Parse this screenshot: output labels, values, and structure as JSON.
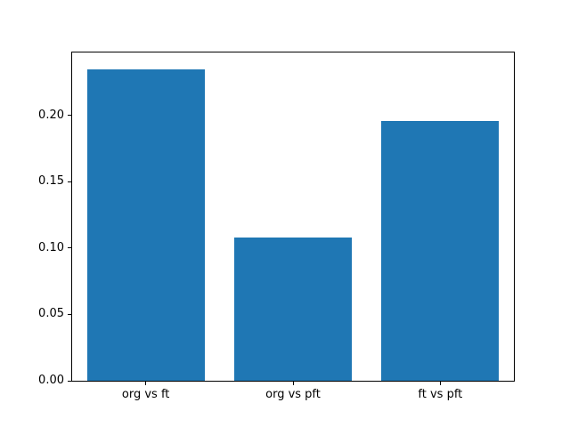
{
  "chart_data": {
    "type": "bar",
    "categories": [
      "org vs ft",
      "org vs pft",
      "ft vs pft"
    ],
    "values": [
      0.235,
      0.108,
      0.196
    ],
    "title": "",
    "xlabel": "",
    "ylabel": "",
    "ylim": [
      0,
      0.2475
    ],
    "yticks": [
      0.0,
      0.05,
      0.1,
      0.15,
      0.2
    ],
    "ytick_format_decimals": 2,
    "bar_color": "#1f77b4",
    "bar_width_fraction": 0.8,
    "grid": false,
    "legend": "none",
    "background_color": "#ffffff",
    "axis_color": "#000000"
  }
}
